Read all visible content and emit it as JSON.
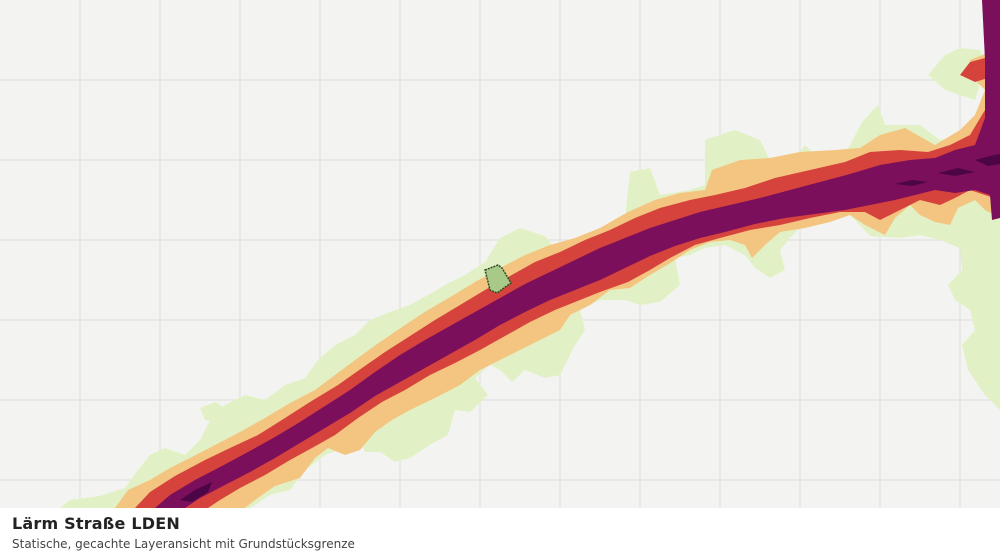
{
  "map": {
    "layer": "Lärm Straße LDEN",
    "noise_colors": [
      "#e2f1c5",
      "#f3c581",
      "#d6433d",
      "#7b0f5b",
      "#4c0645"
    ],
    "parcel_color": "#a9c988",
    "grid_color": "#dcdedb"
  },
  "caption": {
    "title": "Lärm Straße LDEN",
    "subtitle": "Statische, gecachte Layeransicht mit Grundstücksgrenze"
  }
}
